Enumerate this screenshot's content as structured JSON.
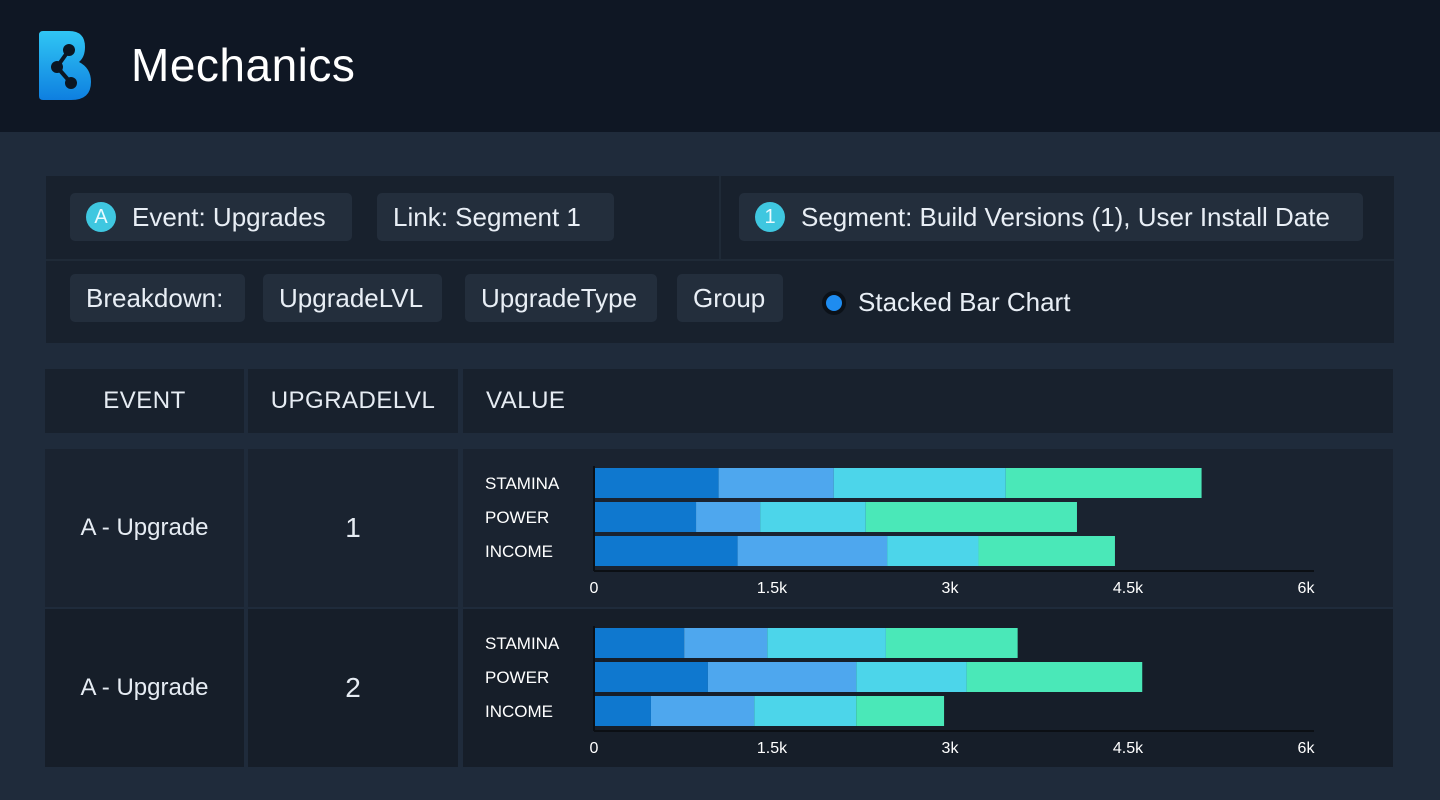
{
  "app": {
    "title": "Mechanics"
  },
  "query": {
    "event_badge": "A",
    "event": "Event: Upgrades",
    "link": "Link: Segment 1",
    "segment_badge": "1",
    "segment": "Segment: Build Versions (1), User Install Date",
    "breakdown_label": "Breakdown:",
    "breakdown_items": [
      "UpgradeLVL",
      "UpgradeType",
      "Group"
    ],
    "chart_type": "Stacked Bar Chart"
  },
  "table": {
    "headers": [
      "EVENT",
      "UPGRADELVL",
      "VALUE"
    ],
    "rows": [
      {
        "event": "A - Upgrade",
        "level": "1"
      },
      {
        "event": "A - Upgrade",
        "level": "2"
      }
    ]
  },
  "colors": {
    "seg1": "#0f78cf",
    "seg2": "#4ea7ee",
    "seg3": "#4cd5ea",
    "seg4": "#4ae8b8"
  },
  "chart_data": [
    {
      "type": "bar",
      "orientation": "horizontal",
      "stacked": true,
      "categories": [
        "STAMINA",
        "POWER",
        "INCOME"
      ],
      "series": [
        {
          "values": [
            1050,
            860,
            1210
          ]
        },
        {
          "values": [
            970,
            540,
            1260
          ]
        },
        {
          "values": [
            1450,
            890,
            770
          ]
        },
        {
          "values": [
            1650,
            1780,
            1150
          ]
        }
      ],
      "xlim": [
        0,
        6000
      ],
      "xticks": [
        "0",
        "1.5k",
        "3k",
        "4.5k",
        "6k"
      ]
    },
    {
      "type": "bar",
      "orientation": "horizontal",
      "stacked": true,
      "categories": [
        "STAMINA",
        "POWER",
        "INCOME"
      ],
      "series": [
        {
          "values": [
            760,
            960,
            480
          ]
        },
        {
          "values": [
            700,
            1250,
            870
          ]
        },
        {
          "values": [
            1000,
            930,
            860
          ]
        },
        {
          "values": [
            1110,
            1480,
            740
          ]
        }
      ],
      "xlim": [
        0,
        6000
      ],
      "xticks": [
        "0",
        "1.5k",
        "3k",
        "4.5k",
        "6k"
      ]
    }
  ]
}
